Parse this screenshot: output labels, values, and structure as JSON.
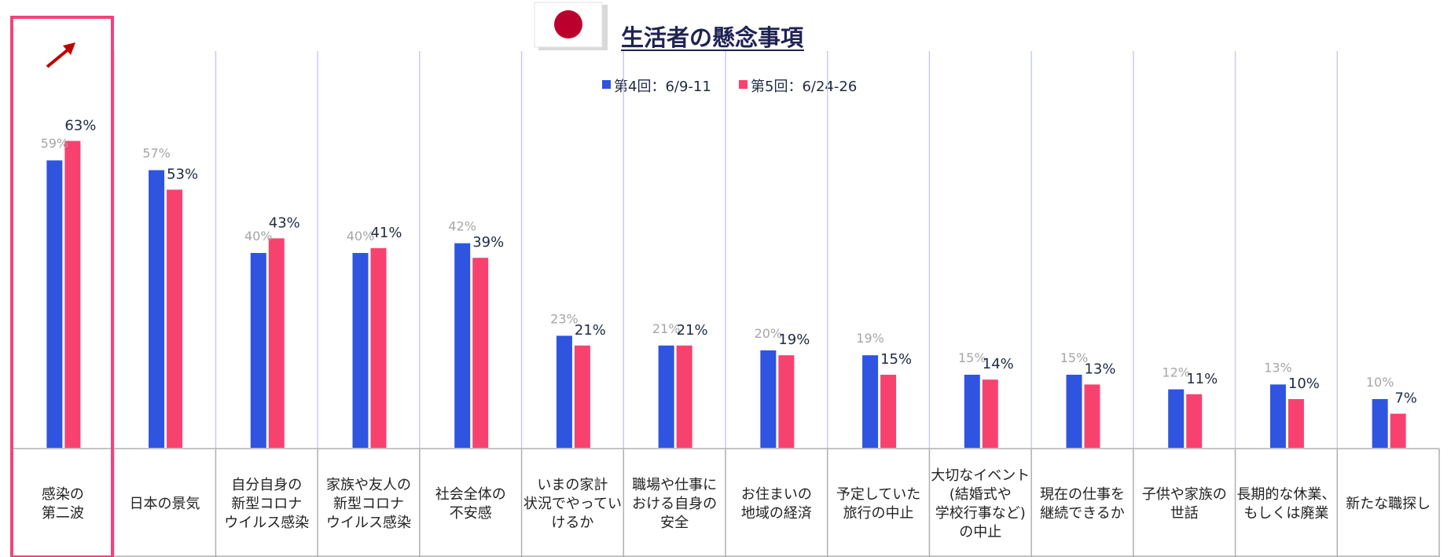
{
  "chart_data": {
    "type": "bar",
    "title": "生活者の懸念事項",
    "categories": [
      [
        "感染の",
        "第二波"
      ],
      [
        "日本の景気"
      ],
      [
        "自分自身の",
        "新型コロナ",
        "ウイルス感染"
      ],
      [
        "家族や友人の",
        "新型コロナ",
        "ウイルス感染"
      ],
      [
        "社会全体の",
        "不安感"
      ],
      [
        "いまの家計",
        "状況でやってい",
        "けるか"
      ],
      [
        "職場や仕事に",
        "おける自身の",
        "安全"
      ],
      [
        "お住まいの",
        "地域の経済"
      ],
      [
        "予定していた",
        "旅行の中止"
      ],
      [
        "大切なイベント",
        "(結婚式や",
        "学校行事など)",
        "の中止"
      ],
      [
        "現在の仕事を",
        "継続できるか"
      ],
      [
        "子供や家族の",
        "世話"
      ],
      [
        "長期的な休業、",
        "もしくは廃業"
      ],
      [
        "新たな職探し"
      ]
    ],
    "series": [
      {
        "name": "第4回：6/9-11",
        "color": "#2e54e0",
        "values": [
          59,
          57,
          40,
          40,
          42,
          23,
          21,
          20,
          19,
          15,
          15,
          12,
          13,
          10
        ],
        "labels": [
          "59%",
          "57%",
          "40%",
          "40%",
          "42%",
          "23%",
          "21%",
          "20%",
          "19%",
          "15%",
          "15%",
          "12%",
          "13%",
          "10%"
        ]
      },
      {
        "name": "第5回：6/24-26",
        "color": "#f7426f",
        "values": [
          63,
          53,
          43,
          41,
          39,
          21,
          21,
          19,
          15,
          14,
          13,
          11,
          10,
          7
        ],
        "labels": [
          "63%",
          "53%",
          "43%",
          "41%",
          "39%",
          "21%",
          "21%",
          "19%",
          "15%",
          "14%",
          "13%",
          "11%",
          "10%",
          "7%"
        ]
      }
    ],
    "ylim": [
      0,
      67
    ],
    "legend": "top-center",
    "highlight_category": 0,
    "annotation": "red up-arrow over first category",
    "colors": {
      "highlight_box": "#f0447a",
      "arrow": "#c00000",
      "separator": "#c8ccf2",
      "table_border": "#b0b0b0",
      "flag_red": "#bc002d"
    }
  }
}
